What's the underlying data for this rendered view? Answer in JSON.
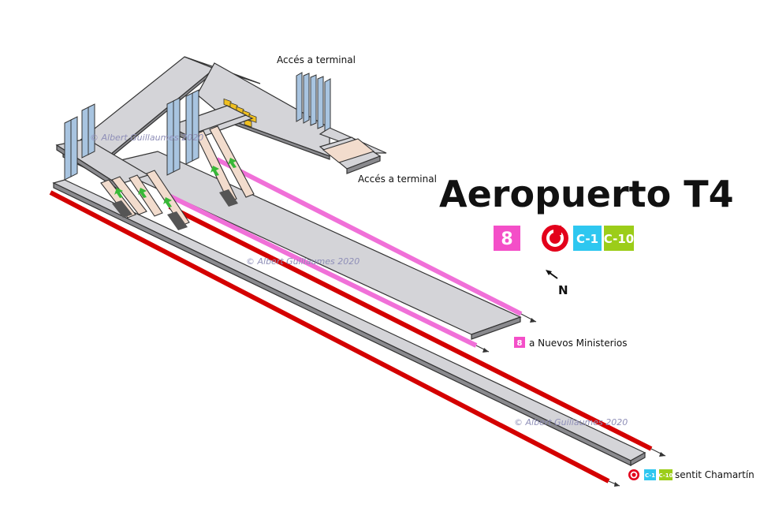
{
  "title": "Aeropuerto T4",
  "labels": {
    "access_top": "Accés a terminal",
    "access_right": "Accés a terminal",
    "north": "N",
    "to_nuevos_ministerios": "a Nuevos Ministerios",
    "towards_chamartin": "sentit Chamartín"
  },
  "watermark": "© Albert Guillaumes 2020",
  "lines": {
    "metro": {
      "label": "8",
      "color": "#f44fc8"
    },
    "renfe": {
      "icon": "cercanias-logo-icon",
      "color": "#e3001b"
    },
    "c1": {
      "label": "C-1",
      "color": "#2ec7f0"
    },
    "c10": {
      "label": "C-10",
      "color": "#9ccd19"
    }
  },
  "colors": {
    "metro_track": "#f070d8",
    "renfe_track": "#d40000",
    "escalator": "#37b836",
    "elevator": "#f0c020"
  }
}
